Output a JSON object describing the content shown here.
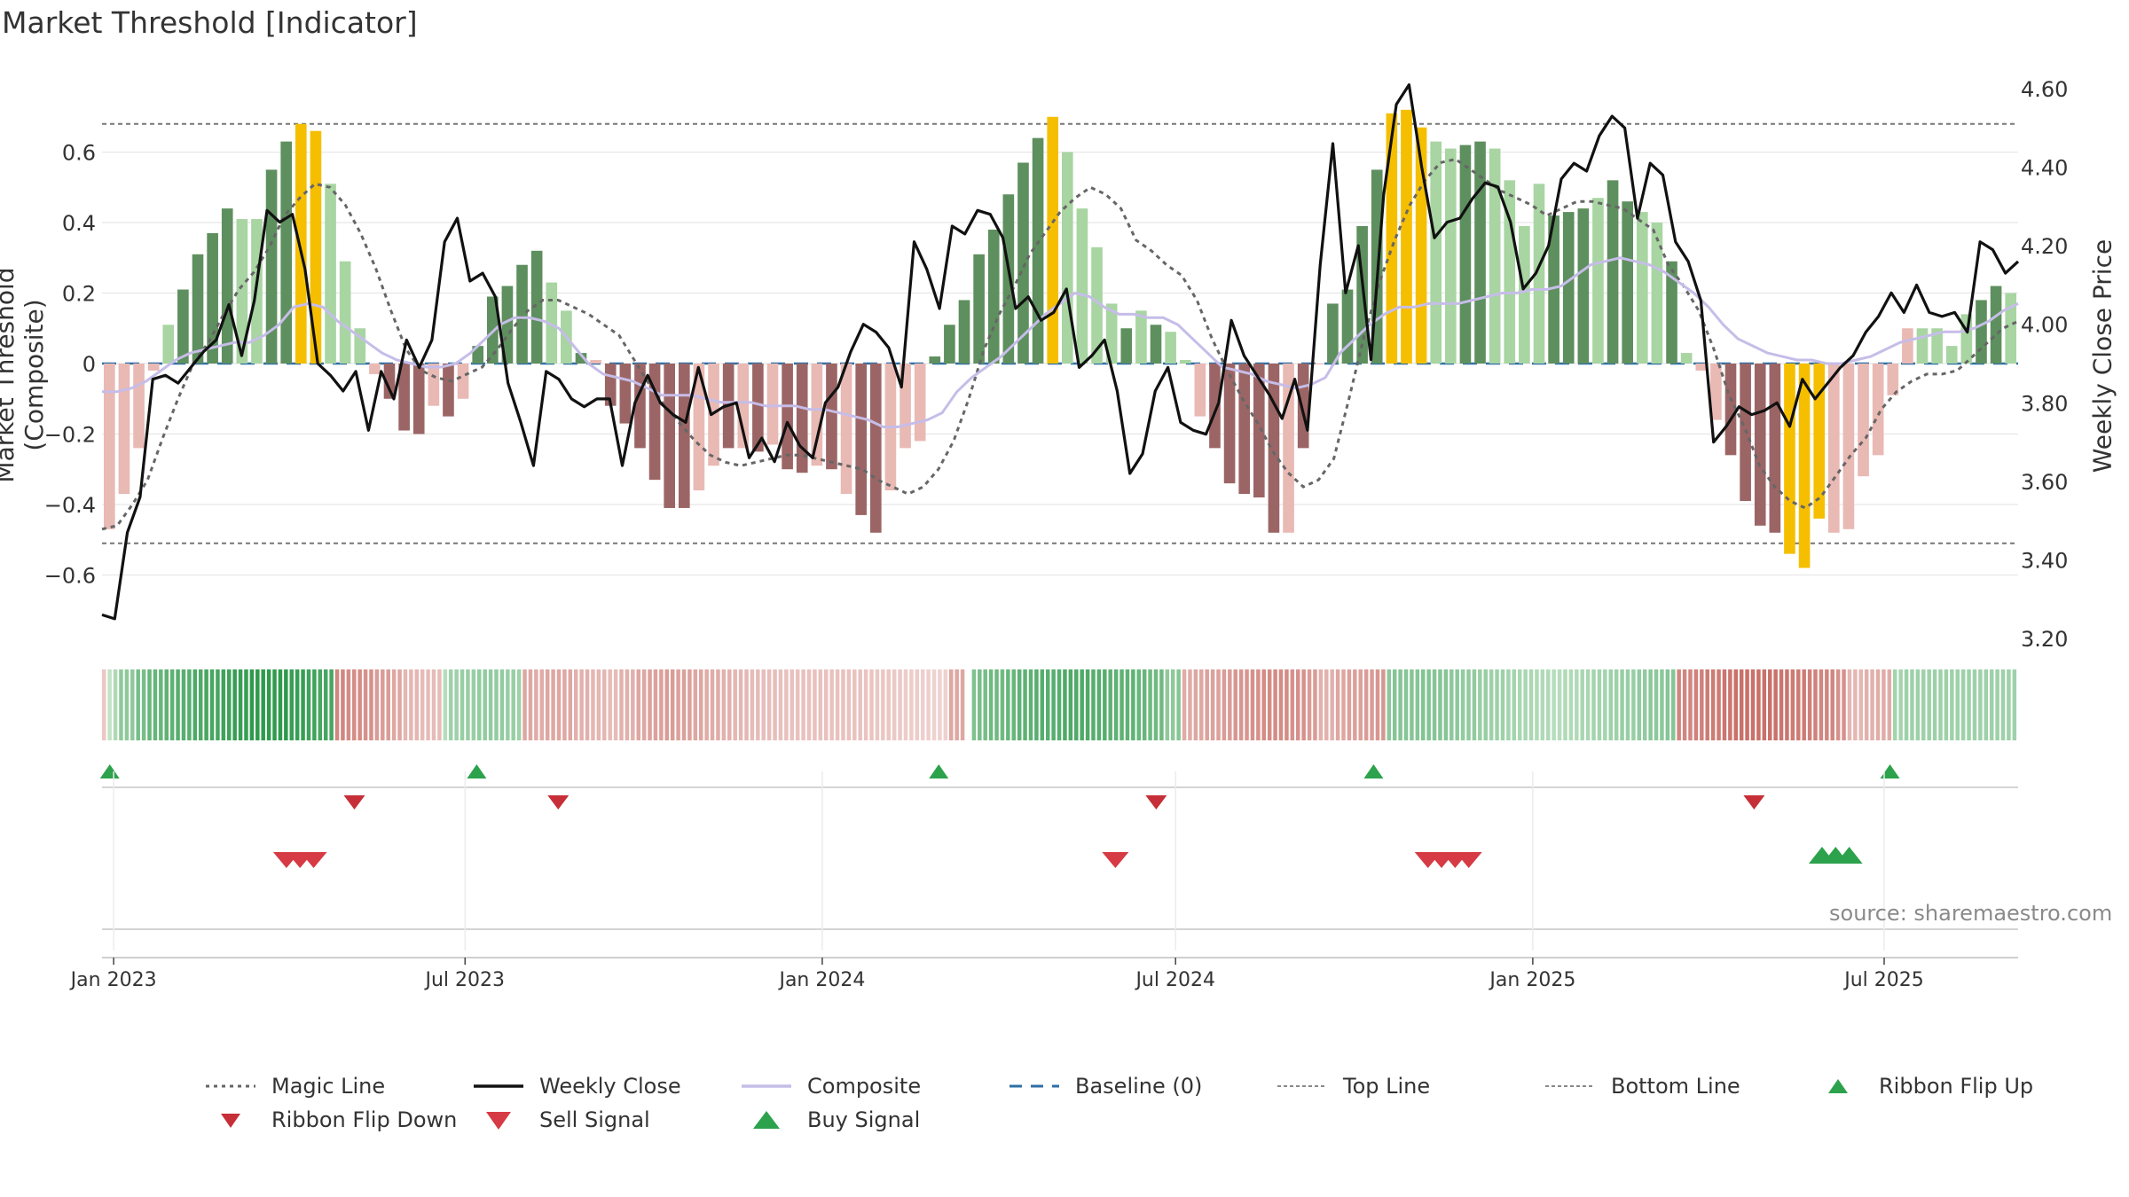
{
  "title": "Market Threshold [Indicator]",
  "source": "source: sharemaestro.com",
  "colors": {
    "strong_green": "#5e8f5e",
    "light_green": "#a8d5a2",
    "strong_red": "#9c6565",
    "light_red": "#e9b9b4",
    "gold": "#f5bf00",
    "weekly_close": "#111111",
    "composite": "#c6bde8",
    "magic": "#666666",
    "baseline": "#2f6fa5",
    "threshold": "#777777",
    "buy": "#2ca24c",
    "sell": "#d63a44"
  },
  "chart_data": {
    "type": "bar",
    "title": "Market Threshold [Indicator]",
    "xlabel": "",
    "ylabel": "Market Threshold (Composite)",
    "ylabel_right": "Weekly Close Price",
    "ylim": [
      -0.78,
      0.78
    ],
    "ylim_right": [
      3.2,
      4.6
    ],
    "x_range": [
      "2022-12-26",
      "2025-09-08"
    ],
    "x_ticks": [
      "Jan 2023",
      "Jul 2023",
      "Jan 2024",
      "Jul 2024",
      "Jan 2025",
      "Jul 2025"
    ],
    "y_ticks": [
      "−0.6",
      "−0.4",
      "−0.2",
      "0",
      "0.2",
      "0.4",
      "0.6"
    ],
    "y_ticks_right": [
      "3.20",
      "3.40",
      "3.60",
      "3.80",
      "4.00",
      "4.20",
      "4.40",
      "4.60"
    ],
    "top_line": 0.68,
    "bottom_line": -0.51,
    "baseline": 0,
    "composite_bars": [
      -0.47,
      -0.37,
      -0.24,
      -0.02,
      0.11,
      0.21,
      0.31,
      0.37,
      0.44,
      0.41,
      0.41,
      0.55,
      0.63,
      0.68,
      0.66,
      0.51,
      0.29,
      0.1,
      -0.03,
      -0.1,
      -0.19,
      -0.2,
      -0.12,
      -0.15,
      -0.1,
      0.05,
      0.19,
      0.22,
      0.28,
      0.32,
      0.23,
      0.15,
      0.03,
      0.01,
      -0.12,
      -0.17,
      -0.24,
      -0.33,
      -0.41,
      -0.41,
      -0.36,
      -0.29,
      -0.24,
      -0.24,
      -0.25,
      -0.23,
      -0.3,
      -0.31,
      -0.29,
      -0.3,
      -0.37,
      -0.43,
      -0.48,
      -0.36,
      -0.24,
      -0.22,
      0.02,
      0.11,
      0.18,
      0.31,
      0.38,
      0.48,
      0.57,
      0.64,
      0.7,
      0.6,
      0.44,
      0.33,
      0.17,
      0.1,
      0.15,
      0.11,
      0.09,
      0.01,
      -0.15,
      -0.24,
      -0.34,
      -0.37,
      -0.38,
      -0.48,
      -0.48,
      -0.24,
      0.0,
      0.17,
      0.21,
      0.39,
      0.55,
      0.71,
      0.72,
      0.67,
      0.63,
      0.61,
      0.62,
      0.63,
      0.61,
      0.52,
      0.39,
      0.51,
      0.42,
      0.43,
      0.44,
      0.47,
      0.52,
      0.46,
      0.43,
      0.4,
      0.29,
      0.03,
      -0.02,
      -0.16,
      -0.26,
      -0.39,
      -0.46,
      -0.48,
      -0.54,
      -0.58,
      -0.44,
      -0.48,
      -0.47,
      -0.32,
      -0.26,
      -0.09,
      0.1,
      0.1,
      0.1,
      0.05,
      0.14,
      0.18,
      0.22,
      0.2
    ],
    "bar_states": [
      "lr",
      "lr",
      "lr",
      "lr",
      "lg",
      "sg",
      "sg",
      "sg",
      "sg",
      "lg",
      "lg",
      "sg",
      "sg",
      "gold",
      "gold",
      "lg",
      "lg",
      "lg",
      "lr",
      "sr",
      "sr",
      "sr",
      "lr",
      "sr",
      "lr",
      "sg",
      "sg",
      "sg",
      "sg",
      "sg",
      "lg",
      "lg",
      "sg",
      "lr",
      "sr",
      "sr",
      "sr",
      "sr",
      "sr",
      "sr",
      "lr",
      "lr",
      "sr",
      "lr",
      "sr",
      "lr",
      "sr",
      "sr",
      "lr",
      "sr",
      "lr",
      "sr",
      "sr",
      "lr",
      "lr",
      "lr",
      "sg",
      "sg",
      "sg",
      "sg",
      "sg",
      "sg",
      "sg",
      "sg",
      "gold",
      "lg",
      "lg",
      "lg",
      "lg",
      "sg",
      "lg",
      "sg",
      "lg",
      "lg",
      "lr",
      "sr",
      "sr",
      "sr",
      "sr",
      "sr",
      "lr",
      "sr",
      "lr",
      "sg",
      "sg",
      "sg",
      "sg",
      "gold",
      "gold",
      "gold",
      "lg",
      "lg",
      "sg",
      "sg",
      "lg",
      "lg",
      "lg",
      "lg",
      "sg",
      "sg",
      "sg",
      "lg",
      "sg",
      "sg",
      "lg",
      "lg",
      "sg",
      "lg",
      "lr",
      "lr",
      "sr",
      "sr",
      "sr",
      "sr",
      "gold",
      "gold",
      "gold",
      "lr",
      "lr",
      "lr",
      "lr",
      "lr",
      "lr",
      "lg",
      "lg",
      "lg",
      "lg",
      "sg",
      "sg",
      "lg",
      "sg",
      "sg"
    ],
    "weekly_close": [
      3.26,
      3.25,
      3.47,
      3.56,
      3.86,
      3.87,
      3.85,
      3.89,
      3.93,
      3.96,
      4.05,
      3.92,
      4.06,
      4.29,
      4.26,
      4.28,
      4.14,
      3.9,
      3.87,
      3.83,
      3.88,
      3.73,
      3.88,
      3.81,
      3.96,
      3.89,
      3.96,
      4.21,
      4.27,
      4.11,
      4.13,
      4.07,
      3.85,
      3.75,
      3.64,
      3.88,
      3.86,
      3.81,
      3.79,
      3.81,
      3.81,
      3.64,
      3.8,
      3.87,
      3.8,
      3.77,
      3.75,
      3.89,
      3.77,
      3.79,
      3.8,
      3.66,
      3.71,
      3.65,
      3.75,
      3.69,
      3.66,
      3.8,
      3.84,
      3.93,
      4.0,
      3.98,
      3.94,
      3.84,
      4.21,
      4.14,
      4.04,
      4.25,
      4.23,
      4.29,
      4.28,
      4.22,
      4.04,
      4.07,
      4.01,
      4.03,
      4.09,
      3.89,
      3.92,
      3.96,
      3.83,
      3.62,
      3.67,
      3.83,
      3.89,
      3.75,
      3.73,
      3.72,
      3.8,
      4.01,
      3.92,
      3.87,
      3.82,
      3.76,
      3.86,
      3.73,
      4.15,
      4.46,
      4.08,
      4.2,
      3.91,
      4.33,
      4.56,
      4.61,
      4.4,
      4.22,
      4.26,
      4.27,
      4.32,
      4.36,
      4.35,
      4.26,
      4.09,
      4.13,
      4.2,
      4.37,
      4.41,
      4.39,
      4.48,
      4.53,
      4.5,
      4.27,
      4.41,
      4.38,
      4.21,
      4.16,
      4.06,
      3.7,
      3.74,
      3.79,
      3.77,
      3.78,
      3.8,
      3.74,
      3.86,
      3.81,
      3.85,
      3.89,
      3.92,
      3.98,
      4.02,
      4.08,
      4.03,
      4.1,
      4.03,
      4.02,
      4.03,
      3.98,
      4.21,
      4.19,
      4.13,
      4.16
    ],
    "composite_line": [
      -0.08,
      -0.08,
      -0.07,
      -0.05,
      -0.02,
      0.01,
      0.03,
      0.04,
      0.05,
      0.06,
      0.06,
      0.08,
      0.11,
      0.16,
      0.17,
      0.16,
      0.12,
      0.09,
      0.06,
      0.03,
      0.01,
      0.0,
      -0.01,
      -0.01,
      0.0,
      0.03,
      0.07,
      0.11,
      0.13,
      0.13,
      0.12,
      0.1,
      0.05,
      0.0,
      -0.03,
      -0.04,
      -0.05,
      -0.07,
      -0.09,
      -0.09,
      -0.09,
      -0.1,
      -0.11,
      -0.11,
      -0.11,
      -0.12,
      -0.12,
      -0.12,
      -0.13,
      -0.13,
      -0.14,
      -0.15,
      -0.16,
      -0.18,
      -0.18,
      -0.17,
      -0.16,
      -0.14,
      -0.08,
      -0.04,
      -0.01,
      0.02,
      0.06,
      0.1,
      0.14,
      0.17,
      0.2,
      0.19,
      0.16,
      0.14,
      0.14,
      0.13,
      0.13,
      0.11,
      0.07,
      0.03,
      -0.01,
      -0.02,
      -0.03,
      -0.05,
      -0.06,
      -0.07,
      -0.06,
      -0.04,
      0.03,
      0.07,
      0.11,
      0.14,
      0.16,
      0.16,
      0.17,
      0.17,
      0.17,
      0.18,
      0.19,
      0.2,
      0.2,
      0.21,
      0.21,
      0.22,
      0.25,
      0.28,
      0.29,
      0.3,
      0.29,
      0.28,
      0.26,
      0.23,
      0.2,
      0.16,
      0.11,
      0.07,
      0.05,
      0.03,
      0.02,
      0.01,
      0.01,
      0.0,
      0.0,
      0.01,
      0.02,
      0.04,
      0.06,
      0.07,
      0.08,
      0.09,
      0.09,
      0.1,
      0.12,
      0.15,
      0.17
    ],
    "magic_line": [
      -0.47,
      -0.46,
      -0.4,
      -0.33,
      -0.21,
      -0.1,
      -0.0,
      0.06,
      0.14,
      0.21,
      0.26,
      0.33,
      0.42,
      0.47,
      0.51,
      0.5,
      0.45,
      0.37,
      0.27,
      0.15,
      0.04,
      -0.02,
      -0.04,
      -0.05,
      -0.03,
      -0.01,
      0.04,
      0.1,
      0.15,
      0.18,
      0.18,
      0.16,
      0.14,
      0.11,
      0.08,
      0.01,
      -0.06,
      -0.12,
      -0.17,
      -0.22,
      -0.26,
      -0.28,
      -0.29,
      -0.28,
      -0.27,
      -0.26,
      -0.26,
      -0.27,
      -0.28,
      -0.29,
      -0.3,
      -0.33,
      -0.35,
      -0.37,
      -0.35,
      -0.3,
      -0.22,
      -0.1,
      0.04,
      0.14,
      0.22,
      0.31,
      0.37,
      0.43,
      0.47,
      0.5,
      0.48,
      0.44,
      0.35,
      0.32,
      0.28,
      0.25,
      0.18,
      0.07,
      -0.02,
      -0.1,
      -0.17,
      -0.25,
      -0.31,
      -0.35,
      -0.33,
      -0.27,
      -0.1,
      0.08,
      0.23,
      0.35,
      0.45,
      0.52,
      0.57,
      0.58,
      0.55,
      0.52,
      0.49,
      0.47,
      0.45,
      0.42,
      0.44,
      0.46,
      0.46,
      0.45,
      0.44,
      0.41,
      0.38,
      0.28,
      0.22,
      0.15,
      0.04,
      -0.09,
      -0.18,
      -0.29,
      -0.35,
      -0.39,
      -0.41,
      -0.38,
      -0.32,
      -0.26,
      -0.21,
      -0.13,
      -0.08,
      -0.05,
      -0.03,
      -0.03,
      -0.02,
      0.02,
      0.06,
      0.1,
      0.12
    ],
    "ribbon_states": [
      "lr",
      "lg",
      "sg",
      "sg",
      "sg",
      "sg",
      "sg",
      "sg",
      "sg",
      "sg",
      "sg",
      "sg",
      "sg",
      "sg",
      "sg",
      "sg",
      "sg",
      "sg",
      "sg",
      "sg",
      "sg",
      "sg",
      "sg",
      "sg",
      "sg",
      "sg",
      "sg",
      "sg",
      "sg",
      "sg",
      "sg",
      "sg",
      "sg",
      "sg",
      "sg",
      "sg",
      "sg",
      "sg",
      "sg",
      "sg",
      "sg",
      "lr",
      "lr",
      "lr",
      "lr",
      "lr",
      "lr",
      "lr",
      "lr",
      "lr",
      "lr",
      "lr",
      "lr",
      "lr",
      "lr",
      "lr",
      "lr",
      "lr",
      "lr",
      "lr",
      "lg",
      "lg",
      "lg",
      "lg",
      "lg",
      "lg",
      "lg",
      "lg",
      "lg",
      "lg",
      "lg",
      "lg",
      "lg",
      "lg",
      "lr",
      "lr",
      "lr",
      "lr",
      "lr",
      "lr",
      "lr",
      "lr",
      "lr",
      "lr",
      "lr",
      "lr",
      "lr",
      "lr",
      "lr",
      "lr",
      "lr",
      "lr",
      "lr",
      "lr",
      "lr",
      "lr",
      "lr",
      "lr",
      "lr",
      "lr",
      "lr",
      "lr",
      "lr",
      "lr",
      "lr",
      "lr",
      "lr",
      "lr",
      "lr",
      "lr",
      "lr",
      "lr",
      "lr",
      "lr",
      "lr",
      "lr",
      "lr",
      "lr",
      "lr",
      "lr",
      "lr",
      "lr",
      "lr",
      "lr",
      "lr",
      "lr",
      "lr",
      "lr",
      "lr",
      "lr",
      "lr",
      "lr",
      "lr",
      "lr",
      "lr",
      "lr",
      "lr",
      "lr",
      "lr",
      "lr",
      "lr",
      "lr",
      "lr",
      "lr",
      "lr",
      "lr",
      "lr",
      "lr",
      "lr",
      "lr",
      "lr",
      "lr",
      "gap",
      "sg",
      "sg",
      "sg",
      "sg",
      "sg",
      "sg",
      "sg",
      "sg",
      "sg",
      "sg",
      "sg",
      "sg",
      "sg",
      "sg",
      "sg",
      "sg",
      "sg",
      "sg",
      "sg",
      "sg",
      "sg",
      "sg",
      "sg",
      "sg",
      "sg",
      "sg",
      "sg",
      "sg",
      "sg",
      "sg",
      "sg",
      "sg",
      "sg",
      "sg",
      "sg",
      "sg",
      "sg",
      "lr",
      "lr",
      "lr",
      "lr",
      "lr",
      "lr",
      "lr",
      "lr",
      "lr",
      "lr",
      "lr",
      "lr",
      "lr",
      "lr",
      "lr",
      "lr",
      "lr",
      "lr",
      "lr",
      "lr",
      "lr",
      "lr",
      "lr",
      "lr",
      "lr",
      "lr",
      "lr",
      "lr",
      "lr",
      "lr",
      "lr",
      "lr",
      "lr",
      "lr",
      "lr",
      "lr",
      "lg",
      "lg",
      "lg",
      "lg",
      "lg",
      "lg",
      "lg",
      "lg",
      "lg",
      "lg",
      "lg",
      "lg",
      "lg",
      "lg",
      "lg",
      "lg",
      "lg",
      "lg",
      "lg",
      "lg",
      "lg",
      "lg",
      "lg",
      "lg",
      "lg",
      "lg",
      "lg",
      "lg",
      "lg",
      "lg",
      "lg",
      "lg",
      "lg",
      "lg",
      "lg",
      "lg",
      "lg",
      "lg",
      "lg",
      "lg",
      "lg",
      "lg",
      "lg",
      "lg",
      "lg",
      "lg",
      "lg",
      "lg",
      "lg",
      "lg",
      "lg",
      "lr",
      "lr",
      "lr",
      "lr",
      "lr",
      "lr",
      "lr",
      "lr",
      "lr",
      "lr",
      "lr",
      "lr",
      "lr",
      "lr",
      "lr",
      "lr",
      "lr",
      "lr",
      "lr",
      "lr",
      "lr",
      "lr",
      "lr",
      "lr",
      "lr",
      "lr",
      "lr",
      "lr",
      "lr",
      "lr",
      "lr",
      "lr",
      "lr",
      "lr",
      "lr",
      "lr",
      "lr",
      "lr",
      "lg",
      "lg",
      "lg",
      "lg",
      "lg",
      "lg",
      "lg",
      "lg",
      "lg",
      "lg",
      "lg",
      "lg",
      "lg",
      "lg",
      "lg",
      "lg",
      "lg",
      "lg",
      "lg",
      "lg",
      "lg",
      "lg"
    ],
    "ribbon_intensity": [
      0.2,
      0.4,
      0.55,
      0.65,
      0.7,
      0.75,
      0.8,
      0.85,
      0.9,
      0.95,
      1.0,
      1.0,
      1.0,
      0.95,
      0.9,
      0.85,
      0.8,
      0.75,
      0.7,
      0.6,
      0.5,
      0.35,
      0.3,
      0.3,
      0.5,
      0.55,
      0.6,
      0.6,
      0.55,
      0.5,
      0.45,
      0.5,
      0.5,
      0.4,
      0.35,
      0.3,
      0.4,
      0.5,
      0.55,
      0.6,
      0.55,
      0.5,
      0.45,
      0.4,
      0.35,
      0.3,
      0.28,
      0.26,
      0.25,
      0.25,
      0.25,
      0.25,
      0.24,
      0.22,
      0.2,
      0.18,
      0.15,
      0.12,
      0.1,
      0.0,
      0.5,
      0.55,
      0.6,
      0.65,
      0.7,
      0.75,
      0.75,
      0.8,
      0.8,
      0.75,
      0.7,
      0.7,
      0.65,
      0.6,
      0.4,
      0.45,
      0.5,
      0.55,
      0.6,
      0.65,
      0.7,
      0.75,
      0.75,
      0.7,
      0.6,
      0.4,
      0.5,
      0.55,
      0.6,
      0.65,
      0.7,
      0.7,
      0.72,
      0.7,
      0.65,
      0.6,
      0.55,
      0.5,
      0.45,
      0.4,
      0.35,
      0.3,
      0.35,
      0.4,
      0.45,
      0.5,
      0.55,
      0.6,
      0.65,
      0.7,
      0.8,
      0.85,
      0.9,
      0.95,
      1.0,
      1.0,
      1.0,
      0.95,
      0.9,
      0.85,
      0.8,
      0.7,
      0.35,
      0.4,
      0.45,
      0.45,
      0.5,
      0.5,
      0.5,
      0.5,
      0.5,
      0.5,
      0.5,
      0.5
    ],
    "ribbon_flip_up": [
      "2022-12-30",
      "2023-07-07",
      "2024-03-01",
      "2024-10-11",
      "2025-07-04"
    ],
    "ribbon_flip_down": [
      "2023-05-05",
      "2023-08-18",
      "2024-06-21",
      "2025-04-25"
    ],
    "sell_signals": [
      "2023-03-31",
      "2023-04-07",
      "2023-04-14",
      "2024-05-31",
      "2024-11-08",
      "2024-11-15",
      "2024-11-22",
      "2024-11-29"
    ],
    "buy_signals": [
      "2025-05-30",
      "2025-06-06",
      "2025-06-13"
    ]
  },
  "legend": [
    {
      "label": "Magic Line",
      "style": "dotted"
    },
    {
      "label": "Weekly Close",
      "style": "solid-black"
    },
    {
      "label": "Composite",
      "style": "solid-lavender"
    },
    {
      "label": "Baseline (0)",
      "style": "dashed-blue"
    },
    {
      "label": "Top Line",
      "style": "dotted-grey"
    },
    {
      "label": "Bottom Line",
      "style": "dotted-grey"
    },
    {
      "label": "Ribbon Flip Up",
      "style": "triangle-up-green"
    },
    {
      "label": "Ribbon Flip Down",
      "style": "triangle-down-red"
    },
    {
      "label": "Sell Signal",
      "style": "triangle-down-red-large"
    },
    {
      "label": "Buy Signal",
      "style": "triangle-up-green-large"
    }
  ]
}
